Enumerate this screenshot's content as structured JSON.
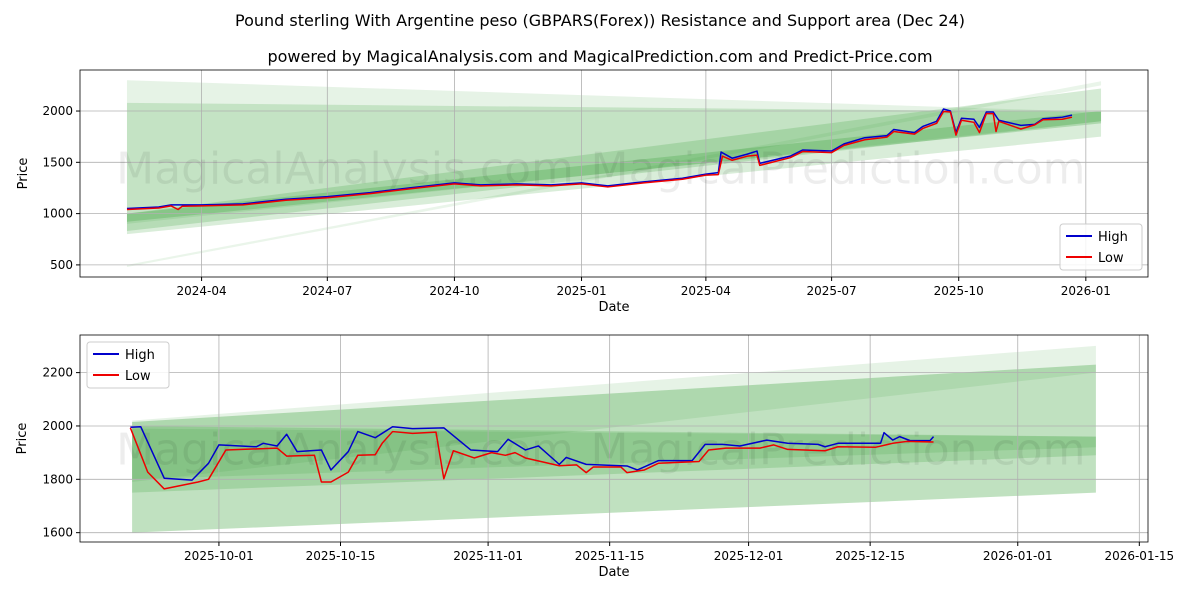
{
  "title": "Pound sterling With Argentine peso (GBPARS(Forex)) Resistance and Support area (Dec 24)",
  "subtitle": "powered by MagicalAnalysis.com and MagicalPrediction.com and Predict-Price.com",
  "watermarks": [
    "MagicalAnalysis.com",
    "MagicalPrediction.com"
  ],
  "colors": {
    "high": "#0000cc",
    "low": "#ee0000",
    "band": "#2e9a2e"
  },
  "chart_data": [
    {
      "type": "line",
      "xlabel": "Date",
      "ylabel": "Price",
      "xlim": [
        "2024-01-04",
        "2026-02-15"
      ],
      "ylim": [
        382,
        2400
      ],
      "xticks": [
        "2024-04",
        "2024-07",
        "2024-10",
        "2025-01",
        "2025-04",
        "2025-07",
        "2025-10",
        "2026-01"
      ],
      "yticks": [
        500,
        1000,
        1500,
        2000
      ],
      "legend": {
        "position": "bottom-right",
        "entries": [
          "High",
          "Low"
        ]
      },
      "bands": [
        {
          "start": "2024-02-07",
          "end": "2026-01-12",
          "top": [
            2300,
            1990
          ],
          "bottom": [
            900,
            1900
          ],
          "opacity": 0.12
        },
        {
          "start": "2024-02-07",
          "end": "2026-01-12",
          "top": [
            2080,
            1990
          ],
          "bottom": [
            800,
            1750
          ],
          "opacity": 0.18
        },
        {
          "start": "2024-02-07",
          "end": "2026-01-12",
          "top": [
            1000,
            2220
          ],
          "bottom": [
            830,
            1900
          ],
          "opacity": 0.2
        },
        {
          "start": "2024-02-07",
          "end": "2026-01-12",
          "top": [
            500,
            2290
          ],
          "bottom": [
            480,
            2250
          ],
          "opacity": 0.1
        },
        {
          "start": "2024-02-07",
          "end": "2026-01-12",
          "top": [
            1000,
            2000
          ],
          "bottom": [
            920,
            1880
          ],
          "opacity": 0.25
        }
      ],
      "series": [
        {
          "name": "High",
          "points": [
            [
              "2024-02-07",
              1050
            ],
            [
              "2024-03-01",
              1065
            ],
            [
              "2024-03-10",
              1085
            ],
            [
              "2024-04-01",
              1085
            ],
            [
              "2024-05-01",
              1095
            ],
            [
              "2024-06-01",
              1140
            ],
            [
              "2024-07-01",
              1165
            ],
            [
              "2024-08-01",
              1205
            ],
            [
              "2024-09-01",
              1255
            ],
            [
              "2024-10-01",
              1300
            ],
            [
              "2024-10-20",
              1280
            ],
            [
              "2024-11-15",
              1290
            ],
            [
              "2024-12-10",
              1280
            ],
            [
              "2025-01-01",
              1300
            ],
            [
              "2025-01-20",
              1270
            ],
            [
              "2025-02-15",
              1310
            ],
            [
              "2025-03-15",
              1345
            ],
            [
              "2025-04-01",
              1385
            ],
            [
              "2025-04-10",
              1400
            ],
            [
              "2025-04-12",
              1600
            ],
            [
              "2025-04-20",
              1540
            ],
            [
              "2025-05-01",
              1580
            ],
            [
              "2025-05-08",
              1610
            ],
            [
              "2025-05-10",
              1490
            ],
            [
              "2025-06-01",
              1560
            ],
            [
              "2025-06-10",
              1620
            ],
            [
              "2025-07-01",
              1610
            ],
            [
              "2025-07-10",
              1680
            ],
            [
              "2025-07-25",
              1740
            ],
            [
              "2025-08-10",
              1760
            ],
            [
              "2025-08-15",
              1820
            ],
            [
              "2025-08-30",
              1790
            ],
            [
              "2025-09-05",
              1850
            ],
            [
              "2025-09-15",
              1900
            ],
            [
              "2025-09-20",
              2020
            ],
            [
              "2025-09-25",
              2000
            ],
            [
              "2025-09-29",
              1790
            ],
            [
              "2025-10-03",
              1930
            ],
            [
              "2025-10-12",
              1920
            ],
            [
              "2025-10-16",
              1840
            ],
            [
              "2025-10-21",
              1990
            ],
            [
              "2025-10-26",
              1990
            ],
            [
              "2025-10-30",
              1910
            ],
            [
              "2025-11-15",
              1860
            ],
            [
              "2025-11-25",
              1870
            ],
            [
              "2025-12-01",
              1925
            ],
            [
              "2025-12-15",
              1940
            ],
            [
              "2025-12-22",
              1960
            ]
          ]
        },
        {
          "name": "Low",
          "points": [
            [
              "2024-02-07",
              1040
            ],
            [
              "2024-03-01",
              1055
            ],
            [
              "2024-03-10",
              1075
            ],
            [
              "2024-03-15",
              1040
            ],
            [
              "2024-03-18",
              1072
            ],
            [
              "2024-04-01",
              1075
            ],
            [
              "2024-05-01",
              1085
            ],
            [
              "2024-06-01",
              1130
            ],
            [
              "2024-07-01",
              1155
            ],
            [
              "2024-08-01",
              1195
            ],
            [
              "2024-09-01",
              1245
            ],
            [
              "2024-10-01",
              1290
            ],
            [
              "2024-10-20",
              1270
            ],
            [
              "2024-11-15",
              1280
            ],
            [
              "2024-12-10",
              1270
            ],
            [
              "2025-01-01",
              1290
            ],
            [
              "2025-01-20",
              1260
            ],
            [
              "2025-02-15",
              1300
            ],
            [
              "2025-03-15",
              1335
            ],
            [
              "2025-04-01",
              1375
            ],
            [
              "2025-04-10",
              1380
            ],
            [
              "2025-04-13",
              1560
            ],
            [
              "2025-04-20",
              1520
            ],
            [
              "2025-05-01",
              1560
            ],
            [
              "2025-05-08",
              1570
            ],
            [
              "2025-05-10",
              1470
            ],
            [
              "2025-06-01",
              1545
            ],
            [
              "2025-06-10",
              1605
            ],
            [
              "2025-07-01",
              1595
            ],
            [
              "2025-07-10",
              1665
            ],
            [
              "2025-07-25",
              1720
            ],
            [
              "2025-08-10",
              1745
            ],
            [
              "2025-08-15",
              1800
            ],
            [
              "2025-08-30",
              1775
            ],
            [
              "2025-09-05",
              1830
            ],
            [
              "2025-09-15",
              1880
            ],
            [
              "2025-09-20",
              1995
            ],
            [
              "2025-09-25",
              1990
            ],
            [
              "2025-09-29",
              1765
            ],
            [
              "2025-10-03",
              1910
            ],
            [
              "2025-10-12",
              1890
            ],
            [
              "2025-10-16",
              1790
            ],
            [
              "2025-10-21",
              1975
            ],
            [
              "2025-10-26",
              1975
            ],
            [
              "2025-10-28",
              1800
            ],
            [
              "2025-10-30",
              1900
            ],
            [
              "2025-11-15",
              1825
            ],
            [
              "2025-11-25",
              1865
            ],
            [
              "2025-12-01",
              1915
            ],
            [
              "2025-12-15",
              1920
            ],
            [
              "2025-12-22",
              1940
            ]
          ]
        }
      ]
    },
    {
      "type": "line",
      "xlabel": "Date",
      "ylabel": "Price",
      "xlim": [
        "2025-09-15",
        "2026-01-16"
      ],
      "ylim": [
        1565,
        2341
      ],
      "xticks": [
        "2025-10-01",
        "2025-10-15",
        "2025-11-01",
        "2025-11-15",
        "2025-12-01",
        "2025-12-15",
        "2026-01-01",
        "2026-01-15"
      ],
      "yticks": [
        1600,
        1800,
        2000,
        2200
      ],
      "legend": {
        "position": "top-left",
        "entries": [
          "High",
          "Low"
        ]
      },
      "bands": [
        {
          "start": "2025-09-21",
          "end": "2026-01-10",
          "top": [
            2020,
            2300
          ],
          "bottom": [
            1790,
            2200
          ],
          "opacity": 0.12
        },
        {
          "start": "2025-09-21",
          "end": "2026-01-10",
          "top": [
            2015,
            2230
          ],
          "bottom": [
            1600,
            1750
          ],
          "opacity": 0.3
        },
        {
          "start": "2025-09-21",
          "end": "2026-01-10",
          "top": [
            2000,
            1960
          ],
          "bottom": [
            1750,
            1890
          ],
          "opacity": 0.2
        },
        {
          "start": "2025-09-21",
          "end": "2026-01-10",
          "top": [
            1990,
            1960
          ],
          "bottom": [
            1800,
            1920
          ],
          "opacity": 0.15
        }
      ],
      "series": [
        {
          "name": "High",
          "points": [
            [
              -10.2,
              1995
            ],
            [
              -9,
              1997
            ],
            [
              -6.3,
              1804
            ],
            [
              -3.1,
              1797
            ],
            [
              -1.2,
              1860
            ],
            [
              0,
              1929
            ],
            [
              4.3,
              1922
            ],
            [
              5.1,
              1935
            ],
            [
              6.7,
              1925
            ],
            [
              7.8,
              1969
            ],
            [
              9,
              1904
            ],
            [
              11.8,
              1910
            ],
            [
              12.9,
              1835
            ],
            [
              14.9,
              1904
            ],
            [
              16,
              1979
            ],
            [
              18,
              1956
            ],
            [
              20,
              1997
            ],
            [
              22.3,
              1990
            ],
            [
              25.9,
              1993
            ],
            [
              29,
              1910
            ],
            [
              32.1,
              1904
            ],
            [
              33.3,
              1950
            ],
            [
              35.3,
              1910
            ],
            [
              36.8,
              1925
            ],
            [
              39.2,
              1856
            ],
            [
              40,
              1882
            ],
            [
              42.3,
              1856
            ],
            [
              47,
              1850
            ],
            [
              48.2,
              1835
            ],
            [
              50.6,
              1870
            ],
            [
              54.5,
              1870
            ],
            [
              56,
              1931
            ],
            [
              58,
              1931
            ],
            [
              60,
              1925
            ],
            [
              63.1,
              1947
            ],
            [
              65.5,
              1935
            ],
            [
              69,
              1931
            ],
            [
              69.8,
              1922
            ],
            [
              71.3,
              1935
            ],
            [
              76.2,
              1935
            ],
            [
              76.6,
              1975
            ],
            [
              77.6,
              1947
            ],
            [
              78.4,
              1960
            ],
            [
              79.6,
              1945
            ],
            [
              81.9,
              1945
            ],
            [
              82.3,
              1960
            ]
          ]
        },
        {
          "name": "Low",
          "points": [
            [
              -10.2,
              1993
            ],
            [
              -8.2,
              1827
            ],
            [
              -6.3,
              1764
            ],
            [
              -2.4,
              1790
            ],
            [
              -1.2,
              1800
            ],
            [
              0.8,
              1910
            ],
            [
              6.7,
              1917
            ],
            [
              7.8,
              1887
            ],
            [
              11,
              1890
            ],
            [
              11.8,
              1790
            ],
            [
              12.9,
              1790
            ],
            [
              14.9,
              1827
            ],
            [
              16,
              1890
            ],
            [
              18,
              1892
            ],
            [
              18.8,
              1935
            ],
            [
              20,
              1979
            ],
            [
              22.3,
              1972
            ],
            [
              25,
              1977
            ],
            [
              25.9,
              1802
            ],
            [
              27,
              1907
            ],
            [
              29.4,
              1880
            ],
            [
              31.4,
              1900
            ],
            [
              33,
              1890
            ],
            [
              34.1,
              1900
            ],
            [
              35.3,
              1880
            ],
            [
              37.2,
              1866
            ],
            [
              39.2,
              1851
            ],
            [
              41.2,
              1854
            ],
            [
              42.3,
              1825
            ],
            [
              43.1,
              1846
            ],
            [
              46.3,
              1846
            ],
            [
              47,
              1825
            ],
            [
              49,
              1835
            ],
            [
              50.6,
              1860
            ],
            [
              55.3,
              1867
            ],
            [
              56.4,
              1910
            ],
            [
              58.4,
              1917
            ],
            [
              62.3,
              1917
            ],
            [
              63.9,
              1929
            ],
            [
              65.5,
              1912
            ],
            [
              69.8,
              1907
            ],
            [
              71.3,
              1922
            ],
            [
              75.6,
              1920
            ],
            [
              77.6,
              1935
            ],
            [
              79.2,
              1942
            ],
            [
              82.3,
              1940
            ]
          ]
        }
      ]
    }
  ]
}
